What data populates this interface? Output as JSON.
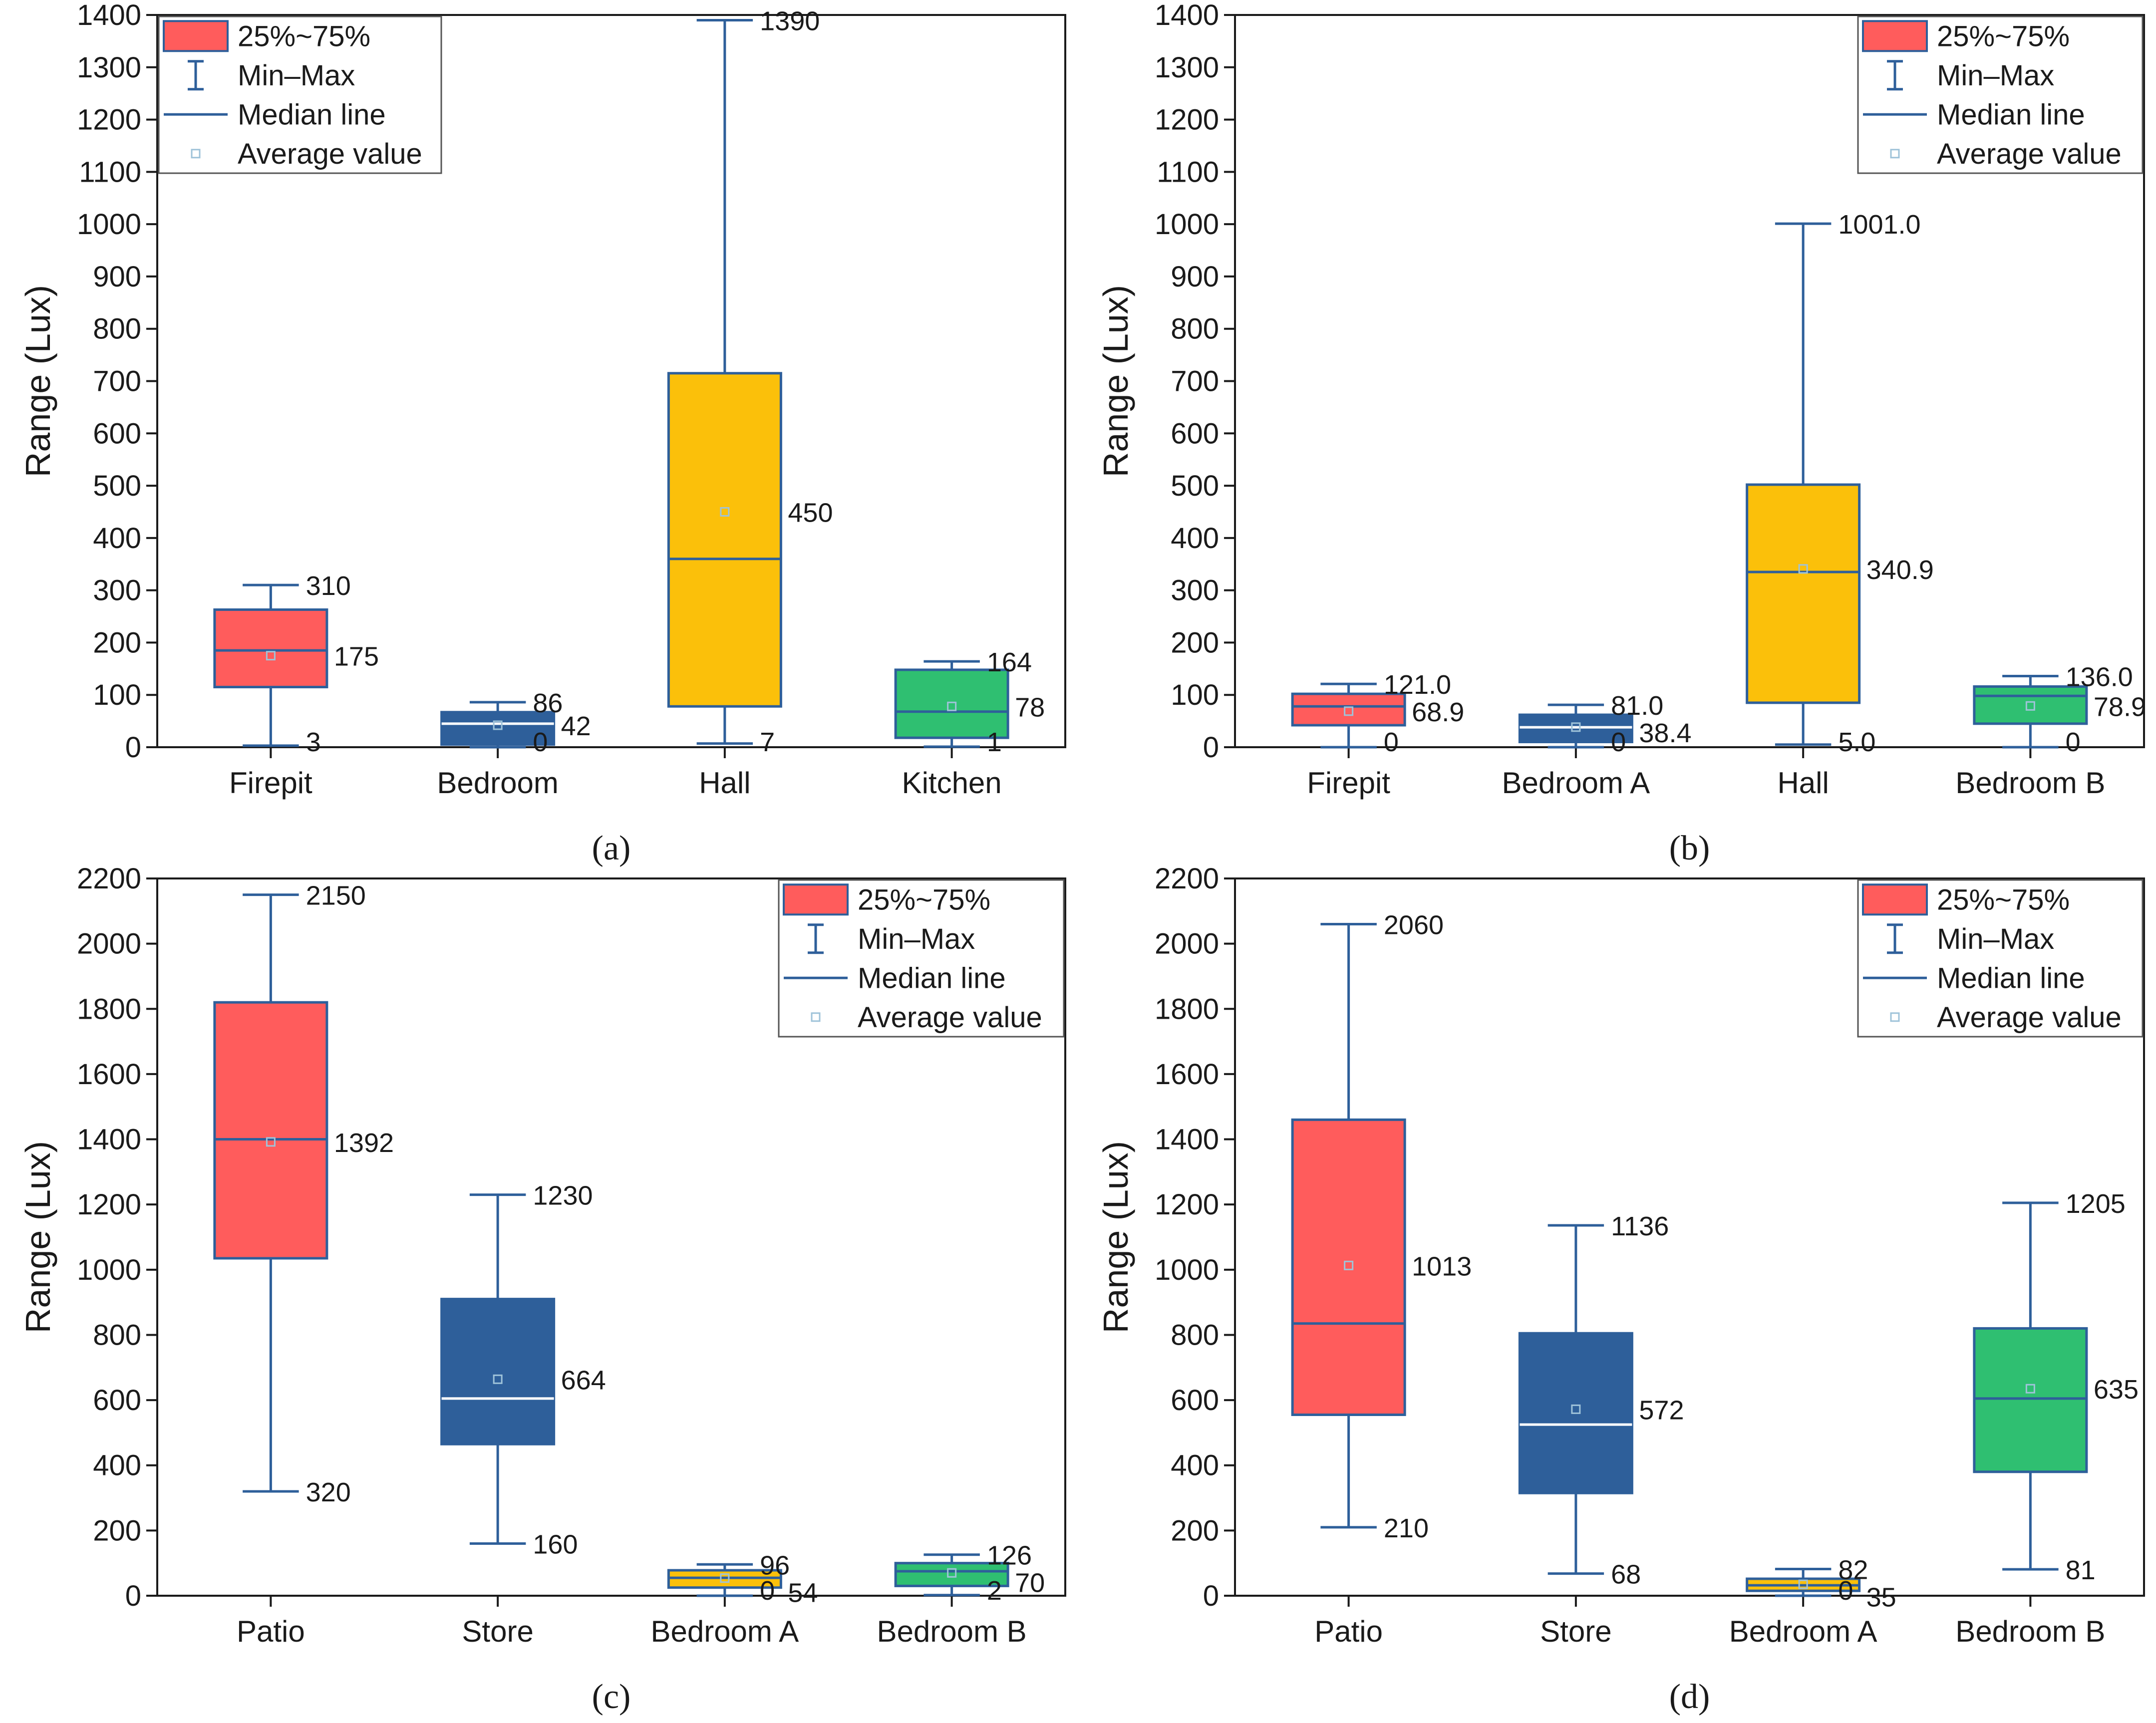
{
  "legend": {
    "box_label": "25%~75%",
    "whisker_label": "Min–Max",
    "median_label": "Median line",
    "mean_label": "Average value"
  },
  "colors": {
    "red": "#ff5c5c",
    "blue": "#2e5f9a",
    "yellow": "#fbc00a",
    "green": "#2fbf71",
    "axis": "#1a1a1a",
    "whisker": "#2e5f9a"
  },
  "chart_data": [
    {
      "type": "box",
      "panel_label": "(a)",
      "ylabel": "Range (Lux)",
      "ylim": [
        0,
        1400
      ],
      "yticks": [
        0,
        100,
        200,
        300,
        400,
        500,
        600,
        700,
        800,
        900,
        1000,
        1100,
        1200,
        1300,
        1400
      ],
      "legend_position": "top-left",
      "categories": [
        "Firepit",
        "Bedroom",
        "Hall",
        "Kitchen"
      ],
      "boxes": [
        {
          "category": "Firepit",
          "color": "red",
          "min": 3,
          "q1": 115,
          "median": 185,
          "q3": 263,
          "max": 310,
          "mean": 175,
          "max_label": "310",
          "mean_label": "175",
          "min_label": "3"
        },
        {
          "category": "Bedroom",
          "color": "blue",
          "min": 0,
          "q1": 5,
          "median": 45,
          "q3": 67,
          "max": 86,
          "mean": 42,
          "max_label": "86",
          "mean_label": "42",
          "min_label": "0"
        },
        {
          "category": "Hall",
          "color": "yellow",
          "min": 7,
          "q1": 78,
          "median": 360,
          "q3": 715,
          "max": 1390,
          "mean": 450,
          "max_label": "1390",
          "mean_label": "450",
          "min_label": "7"
        },
        {
          "category": "Kitchen",
          "color": "green",
          "min": 1,
          "q1": 18,
          "median": 68,
          "q3": 148,
          "max": 164,
          "mean": 78,
          "max_label": "164",
          "mean_label": "78",
          "min_label": "1"
        }
      ]
    },
    {
      "type": "box",
      "panel_label": "(b)",
      "ylabel": "Range (Lux)",
      "ylim": [
        0,
        1400
      ],
      "yticks": [
        0,
        100,
        200,
        300,
        400,
        500,
        600,
        700,
        800,
        900,
        1000,
        1100,
        1200,
        1300,
        1400
      ],
      "legend_position": "top-right",
      "categories": [
        "Firepit",
        "Bedroom A",
        "Hall",
        "Bedroom B"
      ],
      "boxes": [
        {
          "category": "Firepit",
          "color": "red",
          "min": 0,
          "q1": 42,
          "median": 78,
          "q3": 102,
          "max": 121.0,
          "mean": 68.9,
          "max_label": "121.0",
          "mean_label": "68.9",
          "min_label": "0"
        },
        {
          "category": "Bedroom A",
          "color": "blue",
          "min": 0,
          "q1": 10,
          "median": 38,
          "q3": 62,
          "max": 81.0,
          "mean": 38.4,
          "max_label": "81.0",
          "mean_label": "38.4",
          "min_label": "0"
        },
        {
          "category": "Hall",
          "color": "yellow",
          "min": 5.0,
          "q1": 85,
          "median": 335,
          "q3": 502,
          "max": 1001.0,
          "mean": 340.9,
          "max_label": "1001.0",
          "mean_label": "340.9",
          "min_label": "5.0"
        },
        {
          "category": "Bedroom B",
          "color": "green",
          "min": 0,
          "q1": 45,
          "median": 98,
          "q3": 116,
          "max": 136.0,
          "mean": 78.9,
          "max_label": "136.0",
          "mean_label": "78.9",
          "min_label": "0"
        }
      ]
    },
    {
      "type": "box",
      "panel_label": "(c)",
      "ylabel": "Range (Lux)",
      "ylim": [
        0,
        2200
      ],
      "yticks": [
        0,
        200,
        400,
        600,
        800,
        1000,
        1200,
        1400,
        1600,
        1800,
        2000,
        2200
      ],
      "legend_position": "top-right",
      "categories": [
        "Patio",
        "Store",
        "Bedroom A",
        "Bedroom B"
      ],
      "boxes": [
        {
          "category": "Patio",
          "color": "red",
          "min": 320,
          "q1": 1035,
          "median": 1400,
          "q3": 1820,
          "max": 2150,
          "mean": 1392,
          "max_label": "2150",
          "mean_label": "1392",
          "min_label": "320"
        },
        {
          "category": "Store",
          "color": "blue",
          "min": 160,
          "q1": 465,
          "median": 605,
          "q3": 910,
          "max": 1230,
          "mean": 664,
          "max_label": "1230",
          "mean_label": "664",
          "min_label": "160"
        },
        {
          "category": "Bedroom A",
          "color": "yellow",
          "min": 0,
          "q1": 25,
          "median": 55,
          "q3": 78,
          "max": 96,
          "mean": 54,
          "max_label": "96",
          "mean_label": "54",
          "min_label": "0"
        },
        {
          "category": "Bedroom B",
          "color": "green",
          "min": 2,
          "q1": 30,
          "median": 75,
          "q3": 100,
          "max": 126,
          "mean": 70,
          "max_label": "126",
          "mean_label": "70",
          "min_label": "2"
        }
      ]
    },
    {
      "type": "box",
      "panel_label": "(d)",
      "ylabel": "Range (Lux)",
      "ylim": [
        0,
        2200
      ],
      "yticks": [
        0,
        200,
        400,
        600,
        800,
        1000,
        1200,
        1400,
        1600,
        1800,
        2000,
        2200
      ],
      "legend_position": "top-right",
      "categories": [
        "Patio",
        "Store",
        "Bedroom A",
        "Bedroom B"
      ],
      "boxes": [
        {
          "category": "Patio",
          "color": "red",
          "min": 210,
          "q1": 555,
          "median": 835,
          "q3": 1460,
          "max": 2060,
          "mean": 1013,
          "max_label": "2060",
          "mean_label": "1013",
          "min_label": "210"
        },
        {
          "category": "Store",
          "color": "blue",
          "min": 68,
          "q1": 315,
          "median": 525,
          "q3": 805,
          "max": 1136,
          "mean": 572,
          "max_label": "1136",
          "mean_label": "572",
          "min_label": "68"
        },
        {
          "category": "Bedroom A",
          "color": "yellow",
          "min": 0,
          "q1": 15,
          "median": 32,
          "q3": 52,
          "max": 82,
          "mean": 35,
          "max_label": "82",
          "mean_label": "35",
          "min_label": "0"
        },
        {
          "category": "Bedroom B",
          "color": "green",
          "min": 81,
          "q1": 380,
          "median": 605,
          "q3": 820,
          "max": 1205,
          "mean": 635,
          "max_label": "1205",
          "mean_label": "635",
          "min_label": "81"
        }
      ]
    }
  ]
}
